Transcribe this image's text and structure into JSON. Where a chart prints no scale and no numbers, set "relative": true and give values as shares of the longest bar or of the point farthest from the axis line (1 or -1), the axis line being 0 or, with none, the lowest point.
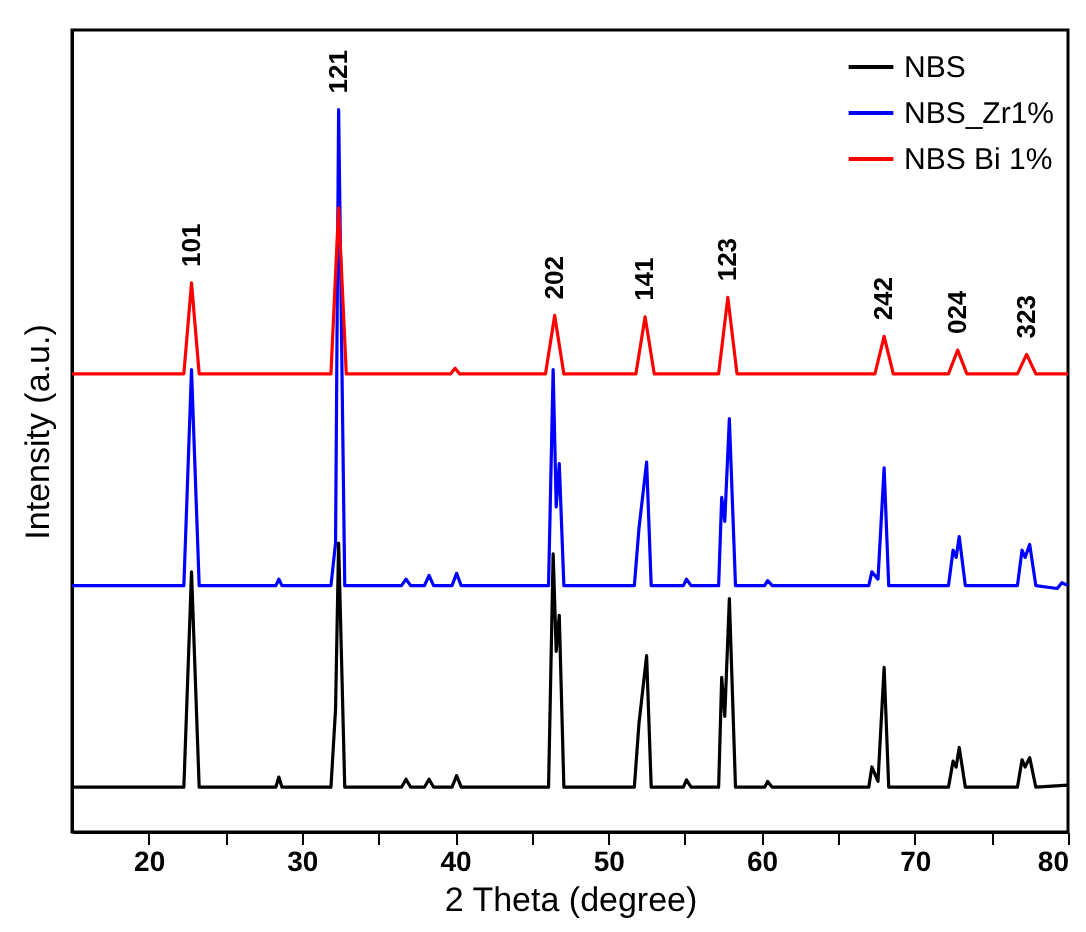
{
  "chart_data": {
    "type": "line",
    "relative": true,
    "xlabel": "2 Theta (degree)",
    "ylabel": "Intensity (a.u.)",
    "xlim": [
      15,
      80
    ],
    "xticks": [
      20,
      {
        "value": 25,
        "label": null
      },
      30,
      {
        "value": 35,
        "label": null
      },
      40,
      {
        "value": 45,
        "label": null
      },
      50,
      {
        "value": 55,
        "label": null
      },
      60,
      {
        "value": 65,
        "label": null
      },
      70,
      {
        "value": 75,
        "label": null
      },
      80
    ],
    "legend": "top right",
    "line_style": "solid",
    "grid": false,
    "series": [
      {
        "name": "NBS",
        "color": "#000000",
        "x": [
          15,
          22.3,
          22.8,
          23.3,
          28.3,
          28.5,
          28.7,
          31.9,
          32.2,
          32.4,
          32.8,
          36.5,
          36.8,
          37.1,
          38.0,
          38.3,
          38.6,
          39.8,
          40.1,
          40.4,
          46.1,
          46.4,
          46.6,
          46.8,
          47.1,
          51.7,
          52.0,
          52.5,
          52.8,
          54.9,
          55.1,
          55.4,
          57.2,
          57.4,
          57.6,
          57.9,
          58.3,
          60.2,
          60.4,
          60.7,
          67.0,
          67.2,
          67.6,
          68.0,
          68.3,
          72.2,
          72.5,
          72.7,
          72.9,
          73.3,
          76.7,
          77.0,
          77.2,
          77.5,
          77.9,
          80
        ],
        "values": [
          0.062,
          0.062,
          0.36,
          0.062,
          0.062,
          0.076,
          0.062,
          0.062,
          0.17,
          0.4,
          0.062,
          0.062,
          0.073,
          0.062,
          0.062,
          0.073,
          0.062,
          0.062,
          0.078,
          0.062,
          0.062,
          0.385,
          0.25,
          0.3,
          0.062,
          0.062,
          0.15,
          0.244,
          0.062,
          0.062,
          0.072,
          0.062,
          0.062,
          0.214,
          0.16,
          0.323,
          0.062,
          0.062,
          0.07,
          0.062,
          0.062,
          0.09,
          0.07,
          0.228,
          0.062,
          0.062,
          0.098,
          0.09,
          0.117,
          0.062,
          0.062,
          0.1,
          0.09,
          0.103,
          0.062,
          0.065
        ]
      },
      {
        "name": "NBS_Zr1%",
        "color": "#0000ff",
        "x": [
          15,
          22.3,
          22.8,
          23.3,
          28.3,
          28.5,
          28.7,
          31.9,
          32.2,
          32.4,
          32.8,
          36.5,
          36.8,
          37.1,
          38.0,
          38.3,
          38.6,
          39.8,
          40.1,
          40.4,
          46.1,
          46.4,
          46.6,
          46.8,
          47.1,
          51.7,
          52.0,
          52.5,
          52.8,
          54.9,
          55.1,
          55.4,
          57.2,
          57.4,
          57.6,
          57.9,
          58.3,
          60.2,
          60.4,
          60.7,
          67.0,
          67.2,
          67.6,
          68.0,
          68.3,
          72.2,
          72.5,
          72.7,
          72.9,
          73.3,
          76.7,
          77.0,
          77.2,
          77.5,
          77.9,
          79.3,
          79.6,
          80
        ],
        "values": [
          0.341,
          0.341,
          0.64,
          0.341,
          0.341,
          0.35,
          0.341,
          0.341,
          0.4,
          1.0,
          0.341,
          0.341,
          0.35,
          0.341,
          0.341,
          0.355,
          0.341,
          0.341,
          0.358,
          0.341,
          0.341,
          0.64,
          0.45,
          0.51,
          0.341,
          0.341,
          0.42,
          0.512,
          0.341,
          0.341,
          0.35,
          0.341,
          0.341,
          0.463,
          0.43,
          0.572,
          0.341,
          0.341,
          0.348,
          0.341,
          0.341,
          0.36,
          0.35,
          0.504,
          0.341,
          0.341,
          0.39,
          0.38,
          0.409,
          0.341,
          0.341,
          0.39,
          0.38,
          0.398,
          0.341,
          0.337,
          0.345,
          0.341
        ]
      },
      {
        "name": "NBS Bi 1%",
        "color": "#ff0000",
        "x": [
          15,
          22.3,
          22.8,
          23.3,
          31.9,
          32.4,
          32.9,
          39.7,
          40.0,
          40.3,
          45.9,
          46.5,
          47.1,
          51.8,
          52.4,
          53.0,
          57.2,
          57.8,
          58.4,
          67.4,
          68.0,
          68.6,
          72.2,
          72.8,
          73.4,
          76.7,
          77.3,
          77.9,
          80
        ],
        "values": [
          0.634,
          0.634,
          0.76,
          0.634,
          0.634,
          0.864,
          0.634,
          0.634,
          0.642,
          0.634,
          0.634,
          0.715,
          0.634,
          0.634,
          0.713,
          0.634,
          0.634,
          0.74,
          0.634,
          0.634,
          0.686,
          0.634,
          0.634,
          0.667,
          0.634,
          0.634,
          0.661,
          0.634,
          0.634
        ]
      }
    ],
    "annotations": [
      {
        "text": "101",
        "x": 22.8,
        "y": 0.76
      },
      {
        "text": "121",
        "x": 32.4,
        "y": 1.0
      },
      {
        "text": "202",
        "x": 46.5,
        "y": 0.715
      },
      {
        "text": "141",
        "x": 52.4,
        "y": 0.713
      },
      {
        "text": "123",
        "x": 57.8,
        "y": 0.74
      },
      {
        "text": "242",
        "x": 68.0,
        "y": 0.686
      },
      {
        "text": "024",
        "x": 72.8,
        "y": 0.667
      },
      {
        "text": "323",
        "x": 77.3,
        "y": 0.661
      }
    ]
  }
}
